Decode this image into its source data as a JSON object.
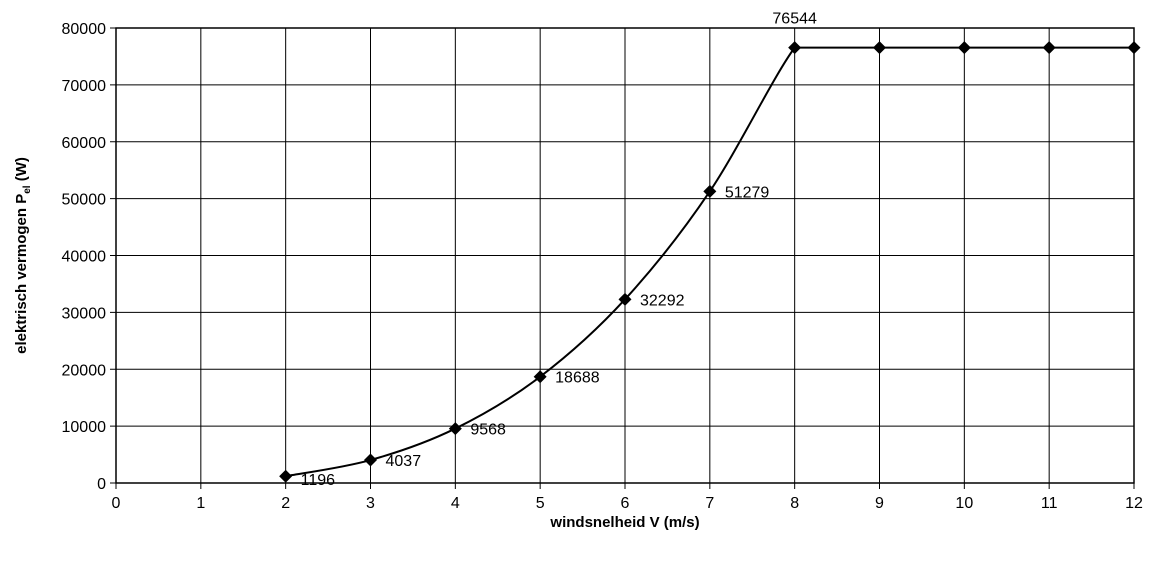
{
  "chart_data": {
    "type": "line",
    "xlabel": "windsnelheid V (m/s)",
    "ylabel": {
      "main": "elektrisch vermogen P",
      "subscript": "el",
      "suffix": " (W)"
    },
    "xlim": [
      0,
      12
    ],
    "ylim": [
      0,
      80000
    ],
    "x_ticks": [
      "0",
      "1",
      "2",
      "3",
      "4",
      "5",
      "6",
      "7",
      "8",
      "9",
      "10",
      "11",
      "12"
    ],
    "y_ticks": [
      "0",
      "10000",
      "20000",
      "30000",
      "40000",
      "50000",
      "60000",
      "70000",
      "80000"
    ],
    "grid": true,
    "legend": "none",
    "line_color": "#000000",
    "marker": "diamond",
    "series": [
      {
        "x": [
          2,
          3,
          4,
          5,
          6,
          7,
          8,
          9,
          10,
          11,
          12
        ],
        "values": [
          1196,
          4037,
          9568,
          18688,
          32292,
          51279,
          76544,
          76544,
          76544,
          76544,
          76544
        ]
      }
    ],
    "data_labels": [
      "1196",
      "4037",
      "9568",
      "18688",
      "32292",
      "51279",
      "76544"
    ]
  }
}
